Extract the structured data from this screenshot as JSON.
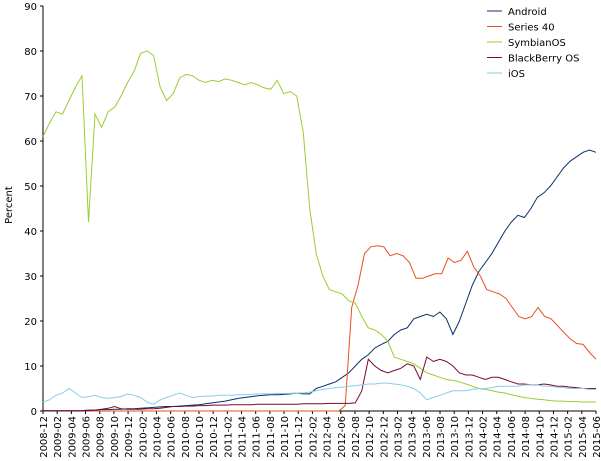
{
  "chart_data": {
    "type": "line",
    "ylabel": "Percent",
    "ylim": [
      0,
      90
    ],
    "yticks": [
      0,
      10,
      20,
      30,
      40,
      50,
      60,
      70,
      80,
      90
    ],
    "grid": false,
    "legend_position": "top-right",
    "x_start": "2008-12",
    "x_end": "2015-06",
    "xtick_labels": [
      "2008-12",
      "2009-02",
      "2009-04",
      "2009-06",
      "2009-08",
      "2009-10",
      "2009-12",
      "2010-02",
      "2010-04",
      "2010-06",
      "2010-08",
      "2010-10",
      "2010-12",
      "2011-02",
      "2011-04",
      "2011-06",
      "2011-08",
      "2011-10",
      "2011-12",
      "2012-02",
      "2012-04",
      "2012-06",
      "2012-08",
      "2012-10",
      "2012-12",
      "2013-02",
      "2013-04",
      "2013-06",
      "2013-08",
      "2013-10",
      "2013-12",
      "2014-02",
      "2014-04",
      "2014-06",
      "2014-08",
      "2014-10",
      "2014-12",
      "2015-02",
      "2015-04",
      "2015-06"
    ],
    "series": [
      {
        "name": "Android",
        "color": "#08306b",
        "values": [
          0.1,
          0.1,
          0.1,
          0.1,
          0.1,
          0.1,
          0.1,
          0.2,
          0.2,
          0.3,
          0.3,
          0.4,
          0.4,
          0.5,
          0.5,
          0.6,
          0.7,
          0.8,
          0.9,
          1.0,
          1.0,
          1.1,
          1.2,
          1.3,
          1.4,
          1.6,
          1.8,
          2.0,
          2.2,
          2.5,
          2.8,
          3.0,
          3.2,
          3.4,
          3.5,
          3.6,
          3.6,
          3.7,
          3.8,
          4.0,
          3.8,
          3.8,
          5.0,
          5.5,
          6.0,
          6.5,
          7.5,
          8.5,
          10.0,
          11.5,
          12.5,
          14.0,
          14.8,
          15.5,
          17.0,
          18.0,
          18.5,
          20.5,
          21.0,
          21.5,
          21.0,
          22.0,
          20.5,
          17.0,
          20.0,
          24.0,
          28.0,
          31.0,
          33.0,
          35.0,
          37.5,
          40.0,
          42.0,
          43.5,
          43.0,
          45.0,
          47.5,
          48.5,
          50.0,
          52.0,
          54.0,
          55.5,
          56.5,
          57.5,
          58.0,
          57.5
        ]
      },
      {
        "name": "Series 40",
        "color": "#e6501e",
        "values": [
          0,
          0,
          0,
          0,
          0,
          0,
          0,
          0,
          0,
          0,
          0,
          0,
          0,
          0,
          0,
          0,
          0,
          0,
          0,
          0,
          0,
          0,
          0,
          0,
          0,
          0,
          0,
          0,
          0,
          0,
          0,
          0,
          0,
          0,
          0,
          0,
          0,
          0,
          0,
          0,
          0,
          0,
          0,
          0,
          0,
          0,
          0,
          1.2,
          23.0,
          28.0,
          35.0,
          36.5,
          36.7,
          36.5,
          34.5,
          35.0,
          34.5,
          33.0,
          29.5,
          29.5,
          30.0,
          30.5,
          30.5,
          34.0,
          33.0,
          33.5,
          35.5,
          32.0,
          30.0,
          27.0,
          26.5,
          26.0,
          25.0,
          23.0,
          21.0,
          20.5,
          21.0,
          23.0,
          21.0,
          20.5,
          19.0,
          17.5,
          16.0,
          15.0,
          14.8,
          13.0,
          11.5
        ]
      },
      {
        "name": "SymbianOS",
        "color": "#9acd32",
        "values": [
          61.0,
          64.0,
          66.5,
          66.0,
          69.0,
          72.0,
          74.5,
          42.0,
          66.0,
          63.0,
          66.5,
          67.5,
          70.0,
          73.0,
          75.5,
          79.5,
          80.0,
          79.0,
          72.0,
          69.0,
          70.5,
          74.0,
          74.8,
          74.5,
          73.5,
          73.0,
          73.5,
          73.2,
          73.8,
          73.5,
          73.0,
          72.5,
          73.0,
          72.5,
          71.8,
          71.5,
          73.5,
          70.5,
          71.0,
          70.0,
          62.0,
          45.0,
          35.0,
          30.0,
          27.0,
          26.5,
          26.0,
          24.5,
          24.0,
          21.0,
          18.5,
          18.0,
          17.0,
          15.5,
          12.0,
          11.5,
          11.0,
          10.5,
          9.5,
          8.5,
          8.0,
          7.5,
          7.0,
          6.8,
          6.5,
          6.0,
          5.5,
          5.0,
          4.8,
          4.5,
          4.2,
          4.0,
          3.6,
          3.3,
          3.0,
          2.8,
          2.6,
          2.5,
          2.3,
          2.2,
          2.2,
          2.1,
          2.1,
          2.0,
          2.0,
          2.0
        ]
      },
      {
        "name": "BlackBerry OS",
        "color": "#7a0a2e",
        "values": [
          0,
          0,
          0,
          0,
          0,
          0,
          0,
          0.1,
          0.2,
          0.4,
          0.6,
          1.0,
          0.5,
          0.4,
          0.4,
          0.4,
          0.5,
          0.5,
          0.6,
          0.8,
          1.0,
          1.0,
          1.1,
          1.1,
          1.2,
          1.2,
          1.3,
          1.3,
          1.3,
          1.4,
          1.4,
          1.4,
          1.4,
          1.5,
          1.5,
          1.5,
          1.5,
          1.5,
          1.5,
          1.5,
          1.6,
          1.6,
          1.6,
          1.6,
          1.7,
          1.7,
          1.7,
          1.7,
          1.8,
          4.5,
          11.5,
          10.0,
          9.0,
          8.5,
          9.0,
          9.5,
          10.5,
          10.0,
          7.0,
          12.0,
          11.0,
          11.5,
          11.0,
          10.0,
          8.5,
          8.0,
          8.0,
          7.5,
          7.0,
          7.5,
          7.5,
          7.0,
          6.5,
          6.0,
          6.0,
          5.8,
          5.8,
          6.0,
          5.8,
          5.5,
          5.5,
          5.3,
          5.2,
          5.0,
          5.0,
          5.0
        ]
      },
      {
        "name": "iOS",
        "color": "#87ceeb",
        "values": [
          2.0,
          2.5,
          3.5,
          4.0,
          5.0,
          4.0,
          3.0,
          3.2,
          3.5,
          3.0,
          2.8,
          3.0,
          3.2,
          3.8,
          3.5,
          3.0,
          2.0,
          1.5,
          2.5,
          3.0,
          3.5,
          4.0,
          3.5,
          3.0,
          3.2,
          3.3,
          3.3,
          3.5,
          3.5,
          3.5,
          3.6,
          3.6,
          3.7,
          3.8,
          3.8,
          3.8,
          3.9,
          3.9,
          3.9,
          4.0,
          4.0,
          4.2,
          4.5,
          4.8,
          5.0,
          5.2,
          5.3,
          5.5,
          5.6,
          5.8,
          6.0,
          6.0,
          6.2,
          6.2,
          6.0,
          5.8,
          5.5,
          5.0,
          4.0,
          2.5,
          3.0,
          3.5,
          4.0,
          4.5,
          4.5,
          4.5,
          4.8,
          5.0,
          5.0,
          5.2,
          5.5,
          5.5,
          5.5,
          5.5,
          5.8,
          5.8,
          5.8,
          5.5,
          5.5,
          5.3,
          5.2,
          5.0,
          5.0,
          5.0,
          4.8,
          4.8
        ]
      }
    ]
  }
}
